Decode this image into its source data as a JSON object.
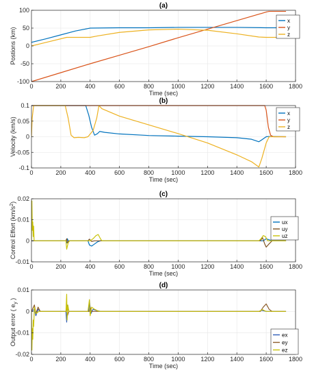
{
  "chart_data": [
    {
      "type": "line",
      "title": "(a)",
      "xlabel": "Time (sec)",
      "ylabel": "Postions (km)",
      "xlim": [
        0,
        1800
      ],
      "ylim": [
        -100,
        100
      ],
      "xticks": [
        0,
        200,
        400,
        600,
        800,
        1000,
        1200,
        1400,
        1600,
        1800
      ],
      "yticks": [
        -100,
        -50,
        0,
        50,
        100
      ],
      "legend_position": "top-right",
      "series": [
        {
          "name": "x",
          "color": "#0072BD",
          "points": [
            [
              0,
              10
            ],
            [
              100,
              20
            ],
            [
              200,
              31
            ],
            [
              300,
              42
            ],
            [
              400,
              50
            ],
            [
              600,
              51
            ],
            [
              800,
              51
            ],
            [
              1000,
              52
            ],
            [
              1200,
              52
            ],
            [
              1400,
              52
            ],
            [
              1600,
              51
            ],
            [
              1735,
              51
            ]
          ]
        },
        {
          "name": "y",
          "color": "#D95319",
          "points": [
            [
              0,
              -100
            ],
            [
              200,
              -75
            ],
            [
              400,
              -50
            ],
            [
              600,
              -26
            ],
            [
              800,
              -2
            ],
            [
              1000,
              23
            ],
            [
              1200,
              47
            ],
            [
              1400,
              71
            ],
            [
              1600,
              95
            ],
            [
              1620,
              97
            ],
            [
              1680,
              97
            ],
            [
              1735,
              97
            ]
          ]
        },
        {
          "name": "z",
          "color": "#EDB120",
          "points": [
            [
              0,
              0
            ],
            [
              100,
              10
            ],
            [
              240,
              24
            ],
            [
              400,
              24
            ],
            [
              450,
              28
            ],
            [
              600,
              38
            ],
            [
              800,
              45
            ],
            [
              1000,
              47
            ],
            [
              1200,
              44
            ],
            [
              1400,
              34
            ],
            [
              1550,
              25
            ],
            [
              1600,
              24
            ],
            [
              1735,
              24
            ]
          ]
        }
      ]
    },
    {
      "type": "line",
      "title": "(b)",
      "xlabel": "Time (sec)",
      "ylabel": "Velocity (km/s)",
      "xlim": [
        0,
        1800
      ],
      "ylim": [
        -0.1,
        0.1
      ],
      "xticks": [
        0,
        200,
        400,
        600,
        800,
        1000,
        1200,
        1400,
        1600,
        1800
      ],
      "yticks": [
        -0.1,
        -0.05,
        0,
        0.05,
        0.1
      ],
      "legend_position": "top-right",
      "series": [
        {
          "name": "x",
          "color": "#0072BD",
          "points": [
            [
              0,
              0.1
            ],
            [
              370,
              0.1
            ],
            [
              390,
              0.07
            ],
            [
              410,
              0.03
            ],
            [
              430,
              0.005
            ],
            [
              450,
              0.01
            ],
            [
              465,
              0.017
            ],
            [
              500,
              0.014
            ],
            [
              600,
              0.009
            ],
            [
              800,
              0.004
            ],
            [
              1000,
              0.002
            ],
            [
              1200,
              0.0
            ],
            [
              1400,
              -0.003
            ],
            [
              1500,
              -0.008
            ],
            [
              1550,
              -0.016
            ],
            [
              1570,
              -0.01
            ],
            [
              1600,
              0.0
            ],
            [
              1620,
              0.001
            ],
            [
              1735,
              0.0
            ]
          ]
        },
        {
          "name": "y",
          "color": "#D95319",
          "points": [
            [
              0,
              0.1
            ],
            [
              1590,
              0.1
            ],
            [
              1600,
              0.085
            ],
            [
              1615,
              0.03
            ],
            [
              1630,
              0.005
            ],
            [
              1650,
              0.0
            ],
            [
              1735,
              0.0
            ]
          ]
        },
        {
          "name": "z",
          "color": "#EDB120",
          "points": [
            [
              0,
              0.0
            ],
            [
              5,
              0.06
            ],
            [
              15,
              0.1
            ],
            [
              230,
              0.1
            ],
            [
              250,
              0.06
            ],
            [
              270,
              0.005
            ],
            [
              290,
              -0.003
            ],
            [
              320,
              -0.002
            ],
            [
              360,
              -0.003
            ],
            [
              385,
              0.0
            ],
            [
              420,
              0.02
            ],
            [
              445,
              0.06
            ],
            [
              460,
              0.1
            ],
            [
              480,
              0.09
            ],
            [
              600,
              0.066
            ],
            [
              800,
              0.038
            ],
            [
              1000,
              0.01
            ],
            [
              1200,
              -0.02
            ],
            [
              1400,
              -0.058
            ],
            [
              1500,
              -0.08
            ],
            [
              1550,
              -0.097
            ],
            [
              1570,
              -0.07
            ],
            [
              1600,
              -0.02
            ],
            [
              1620,
              0.0
            ],
            [
              1735,
              0.0
            ]
          ]
        }
      ]
    },
    {
      "type": "line",
      "title": "(c)",
      "xlabel": "Time (sec)",
      "ylabel": "Control Effort (km/s",
      "ylabel_sup": "2",
      "ylabel_end": ")",
      "xlim": [
        0,
        1800
      ],
      "ylim": [
        -0.01,
        0.02
      ],
      "xticks": [
        0,
        200,
        400,
        600,
        800,
        1000,
        1200,
        1400,
        1600,
        1800
      ],
      "yticks": [
        -0.01,
        0,
        0.01,
        0.02
      ],
      "legend_position": "right",
      "series": [
        {
          "name": "ux",
          "color": "#0072BD",
          "points": [
            [
              0,
              0
            ],
            [
              235,
              0
            ],
            [
              240,
              -0.001
            ],
            [
              245,
              0.001
            ],
            [
              250,
              0
            ],
            [
              385,
              0
            ],
            [
              395,
              -0.002
            ],
            [
              410,
              -0.0025
            ],
            [
              430,
              -0.0015
            ],
            [
              450,
              -0.0005
            ],
            [
              470,
              0
            ],
            [
              1580,
              0
            ],
            [
              1600,
              0.001
            ],
            [
              1620,
              0.0005
            ],
            [
              1640,
              0
            ],
            [
              1735,
              0
            ]
          ]
        },
        {
          "name": "uy",
          "color": "#7E5424",
          "points": [
            [
              0,
              0
            ],
            [
              235,
              0
            ],
            [
              240,
              0.001
            ],
            [
              245,
              -0.001
            ],
            [
              255,
              0
            ],
            [
              385,
              0
            ],
            [
              395,
              0.0008
            ],
            [
              410,
              -0.0003
            ],
            [
              430,
              0
            ],
            [
              1560,
              0
            ],
            [
              1575,
              0.0015
            ],
            [
              1590,
              -0.0015
            ],
            [
              1600,
              -0.003
            ],
            [
              1615,
              -0.0018
            ],
            [
              1640,
              0
            ],
            [
              1735,
              0
            ]
          ]
        },
        {
          "name": "uz",
          "color": "#C9C209",
          "points": [
            [
              0,
              0.0
            ],
            [
              3,
              0.019
            ],
            [
              6,
              0.005
            ],
            [
              9,
              0.009
            ],
            [
              12,
              0.002
            ],
            [
              15,
              0.007
            ],
            [
              18,
              0.0
            ],
            [
              30,
              0
            ],
            [
              235,
              0
            ],
            [
              240,
              -0.004
            ],
            [
              250,
              -0.001
            ],
            [
              260,
              0
            ],
            [
              385,
              0
            ],
            [
              400,
              0.0
            ],
            [
              420,
              0.001
            ],
            [
              440,
              0.0025
            ],
            [
              455,
              0.003
            ],
            [
              470,
              0.001
            ],
            [
              480,
              0
            ],
            [
              1550,
              0
            ],
            [
              1565,
              0.001
            ],
            [
              1580,
              0.0025
            ],
            [
              1595,
              0.002
            ],
            [
              1610,
              0
            ],
            [
              1735,
              0
            ]
          ]
        }
      ]
    },
    {
      "type": "line",
      "title": "(d)",
      "xlabel": "Time (sec)",
      "ylabel": "Output error ( e",
      "ylabel_sub": "y",
      "ylabel_end": " )",
      "xlim": [
        0,
        1800
      ],
      "ylim": [
        -0.02,
        0.01
      ],
      "xticks": [
        0,
        200,
        400,
        600,
        800,
        1000,
        1200,
        1400,
        1600,
        1800
      ],
      "yticks": [
        -0.02,
        -0.01,
        0,
        0.01
      ],
      "legend_position": "bottom-right",
      "series": [
        {
          "name": "ex",
          "color": "#2F5CB8",
          "points": [
            [
              0,
              0
            ],
            [
              20,
              0.001
            ],
            [
              30,
              -0.002
            ],
            [
              45,
              0.001
            ],
            [
              60,
              0
            ],
            [
              235,
              0
            ],
            [
              240,
              -0.005
            ],
            [
              245,
              0.003
            ],
            [
              255,
              0
            ],
            [
              390,
              0
            ],
            [
              395,
              0.005
            ],
            [
              405,
              -0.001
            ],
            [
              420,
              0.001
            ],
            [
              440,
              0.0005
            ],
            [
              470,
              0
            ],
            [
              1550,
              0
            ],
            [
              1570,
              0.0005
            ],
            [
              1600,
              0
            ],
            [
              1735,
              0
            ]
          ]
        },
        {
          "name": "ey",
          "color": "#8C5C2A",
          "points": [
            [
              0,
              0
            ],
            [
              20,
              0.003
            ],
            [
              30,
              -0.001
            ],
            [
              45,
              0.002
            ],
            [
              60,
              0
            ],
            [
              235,
              0
            ],
            [
              240,
              0.002
            ],
            [
              245,
              -0.002
            ],
            [
              255,
              0
            ],
            [
              395,
              0
            ],
            [
              400,
              0.002
            ],
            [
              410,
              0
            ],
            [
              1560,
              0
            ],
            [
              1580,
              0.002
            ],
            [
              1600,
              0.0035
            ],
            [
              1620,
              0.001
            ],
            [
              1640,
              0
            ],
            [
              1735,
              0
            ]
          ]
        },
        {
          "name": "ez",
          "color": "#C9C209",
          "points": [
            [
              0,
              0.0
            ],
            [
              3,
              -0.018
            ],
            [
              6,
              -0.008
            ],
            [
              9,
              -0.013
            ],
            [
              12,
              -0.004
            ],
            [
              15,
              -0.007
            ],
            [
              20,
              0.002
            ],
            [
              30,
              -0.001
            ],
            [
              50,
              0
            ],
            [
              235,
              0
            ],
            [
              240,
              0.008
            ],
            [
              243,
              -0.004
            ],
            [
              248,
              0.003
            ],
            [
              255,
              0
            ],
            [
              385,
              0
            ],
            [
              395,
              0.0055
            ],
            [
              400,
              -0.002
            ],
            [
              410,
              0.002
            ],
            [
              430,
              0.001
            ],
            [
              460,
              0
            ],
            [
              1550,
              0
            ],
            [
              1575,
              0.0008
            ],
            [
              1600,
              0
            ],
            [
              1735,
              0
            ]
          ]
        }
      ]
    }
  ]
}
